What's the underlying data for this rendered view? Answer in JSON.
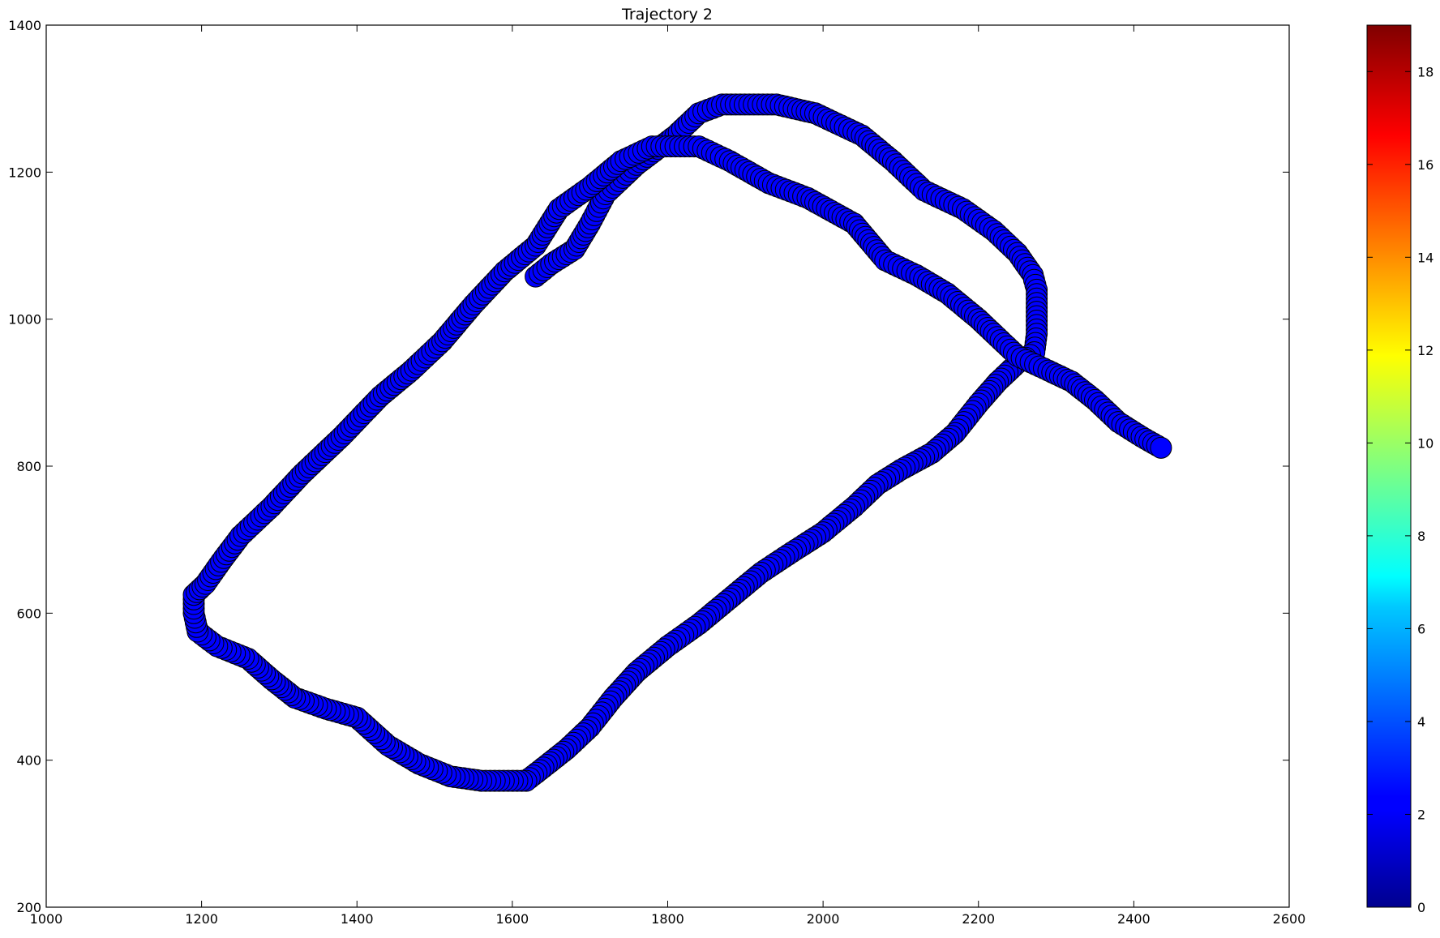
{
  "chart_data": {
    "type": "scatter",
    "title": "Trajectory 2",
    "xlabel": "",
    "ylabel": "",
    "xlim": [
      1000,
      2600
    ],
    "ylim": [
      200,
      1400
    ],
    "x_ticks": [
      1000,
      1200,
      1400,
      1600,
      1800,
      2000,
      2200,
      2400,
      2600
    ],
    "y_ticks": [
      200,
      400,
      600,
      800,
      1000,
      1200,
      1400
    ],
    "x_tick_labels": [
      "1000",
      "1200",
      "1400",
      "1600",
      "1800",
      "2000",
      "2200",
      "2400",
      "2600"
    ],
    "y_tick_labels": [
      "200",
      "400",
      "600",
      "800",
      "1000",
      "1200",
      "1400"
    ],
    "grid": false,
    "marker_color": "#0000ff",
    "marker_edge_color": "#000000",
    "colorbar": {
      "colormap": "jet",
      "range": [
        0,
        19
      ],
      "ticks": [
        0,
        2,
        4,
        6,
        8,
        10,
        12,
        14,
        16,
        18
      ],
      "tick_labels": [
        "0",
        "2",
        "4",
        "6",
        "8",
        "10",
        "12",
        "14",
        "16",
        "18"
      ]
    },
    "trajectory_waypoints": [
      [
        1630,
        1058
      ],
      [
        1650,
        1075
      ],
      [
        1680,
        1095
      ],
      [
        1700,
        1130
      ],
      [
        1720,
        1170
      ],
      [
        1760,
        1210
      ],
      [
        1810,
        1250
      ],
      [
        1840,
        1280
      ],
      [
        1870,
        1292
      ],
      [
        1940,
        1292
      ],
      [
        1990,
        1280
      ],
      [
        2050,
        1250
      ],
      [
        2090,
        1215
      ],
      [
        2130,
        1175
      ],
      [
        2180,
        1150
      ],
      [
        2220,
        1120
      ],
      [
        2250,
        1090
      ],
      [
        2270,
        1060
      ],
      [
        2275,
        1040
      ],
      [
        2275,
        980
      ],
      [
        2272,
        955
      ],
      [
        2250,
        940
      ],
      [
        2225,
        915
      ],
      [
        2200,
        885
      ],
      [
        2170,
        845
      ],
      [
        2140,
        818
      ],
      [
        2100,
        795
      ],
      [
        2070,
        775
      ],
      [
        2040,
        745
      ],
      [
        2000,
        710
      ],
      [
        1960,
        683
      ],
      [
        1920,
        655
      ],
      [
        1880,
        620
      ],
      [
        1840,
        585
      ],
      [
        1800,
        555
      ],
      [
        1760,
        520
      ],
      [
        1730,
        485
      ],
      [
        1700,
        445
      ],
      [
        1670,
        415
      ],
      [
        1640,
        390
      ],
      [
        1618,
        372
      ],
      [
        1560,
        372
      ],
      [
        1520,
        378
      ],
      [
        1480,
        395
      ],
      [
        1440,
        420
      ],
      [
        1400,
        458
      ],
      [
        1360,
        470
      ],
      [
        1320,
        485
      ],
      [
        1290,
        510
      ],
      [
        1260,
        538
      ],
      [
        1220,
        555
      ],
      [
        1195,
        575
      ],
      [
        1190,
        600
      ],
      [
        1190,
        625
      ],
      [
        1205,
        640
      ],
      [
        1225,
        670
      ],
      [
        1250,
        705
      ],
      [
        1290,
        745
      ],
      [
        1330,
        790
      ],
      [
        1380,
        840
      ],
      [
        1430,
        895
      ],
      [
        1470,
        930
      ],
      [
        1510,
        970
      ],
      [
        1550,
        1020
      ],
      [
        1590,
        1065
      ],
      [
        1630,
        1100
      ],
      [
        1660,
        1150
      ],
      [
        1700,
        1180
      ],
      [
        1740,
        1215
      ],
      [
        1780,
        1235
      ],
      [
        1840,
        1235
      ],
      [
        1880,
        1215
      ],
      [
        1930,
        1185
      ],
      [
        1980,
        1165
      ],
      [
        2040,
        1130
      ],
      [
        2080,
        1080
      ],
      [
        2120,
        1060
      ],
      [
        2160,
        1035
      ],
      [
        2200,
        1000
      ],
      [
        2220,
        980
      ],
      [
        2250,
        950
      ],
      [
        2290,
        930
      ],
      [
        2320,
        915
      ],
      [
        2350,
        890
      ],
      [
        2380,
        860
      ],
      [
        2410,
        840
      ],
      [
        2435,
        825
      ]
    ]
  }
}
